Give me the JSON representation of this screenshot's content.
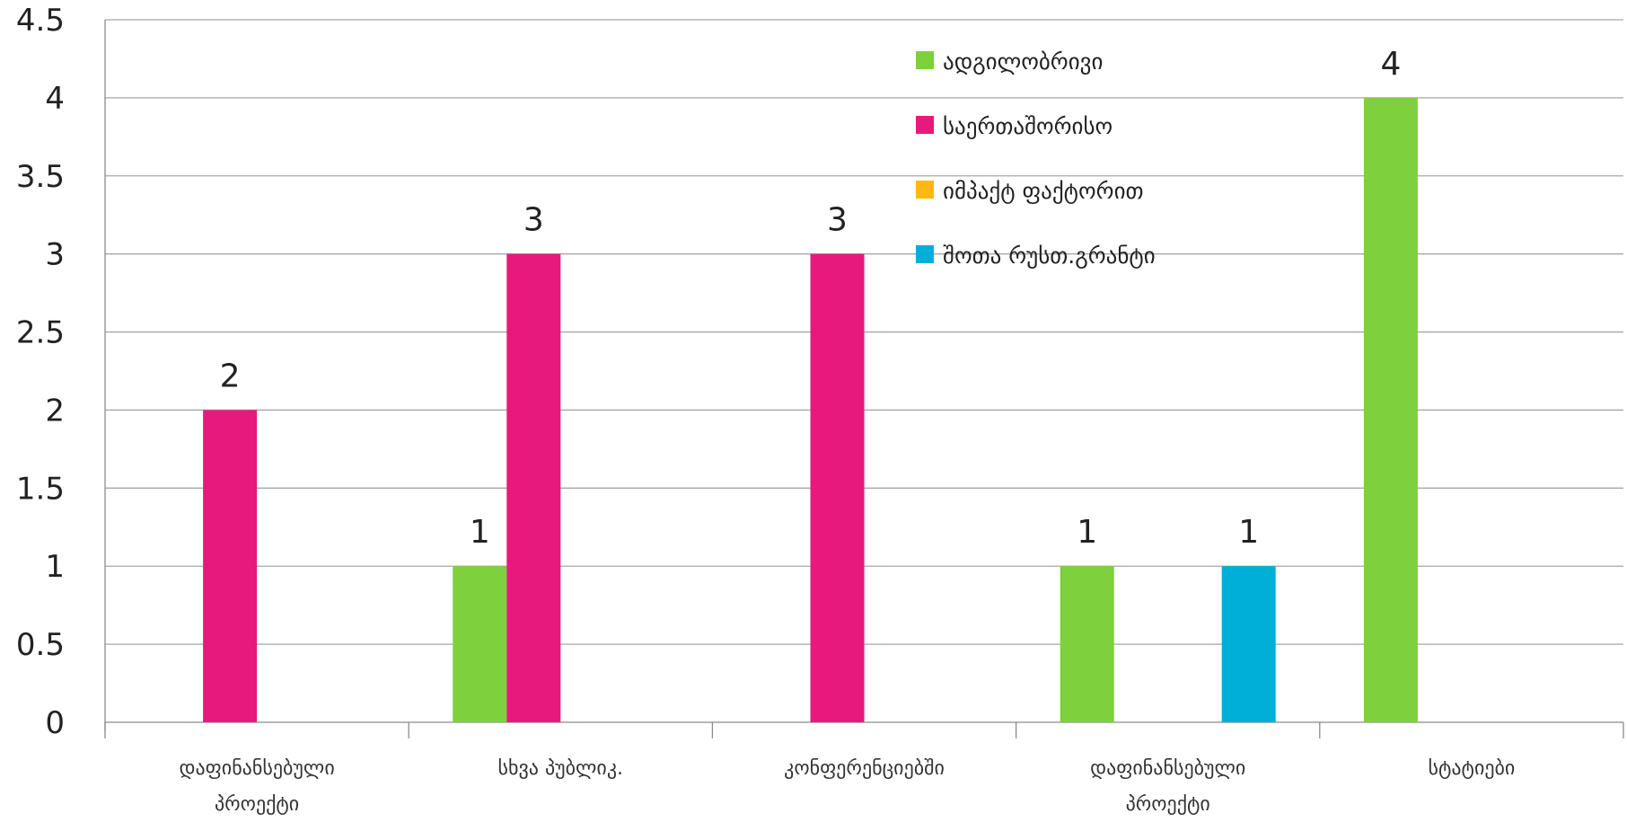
{
  "chart_data": {
    "type": "bar",
    "title": "",
    "xlabel": "",
    "ylabel": "",
    "ylim": [
      0,
      4.5
    ],
    "yticks": [
      0,
      0.5,
      1,
      1.5,
      2,
      2.5,
      3,
      3.5,
      4,
      4.5
    ],
    "ytick_labels": [
      "0",
      "0.5",
      "1",
      "1.5",
      "2",
      "2.5",
      "3",
      "3.5",
      "4",
      "4.5"
    ],
    "grid": true,
    "legend_position": "top-right",
    "categories": [
      [
        "დაფინანსებული",
        "პროექტი"
      ],
      [
        "სხვა პუბლიკ."
      ],
      [
        "კონფერენციებში"
      ],
      [
        "დაფინანსებული",
        "პროექტი"
      ],
      [
        "სტატიები"
      ]
    ],
    "series": [
      {
        "name": "ადგილობრივი",
        "color": "#7ed03c",
        "values": [
          null,
          1,
          null,
          1,
          4
        ]
      },
      {
        "name": "საერთაშორისო",
        "color": "#e8197d",
        "values": [
          2,
          3,
          3,
          null,
          null
        ]
      },
      {
        "name": "იმპაქტ ფაქტორით",
        "color": "#fdb913",
        "values": [
          null,
          null,
          null,
          null,
          null
        ]
      },
      {
        "name": "შოთა რუსთ.გრანტი",
        "color": "#00afd8",
        "values": [
          null,
          null,
          null,
          1,
          null
        ]
      }
    ]
  }
}
